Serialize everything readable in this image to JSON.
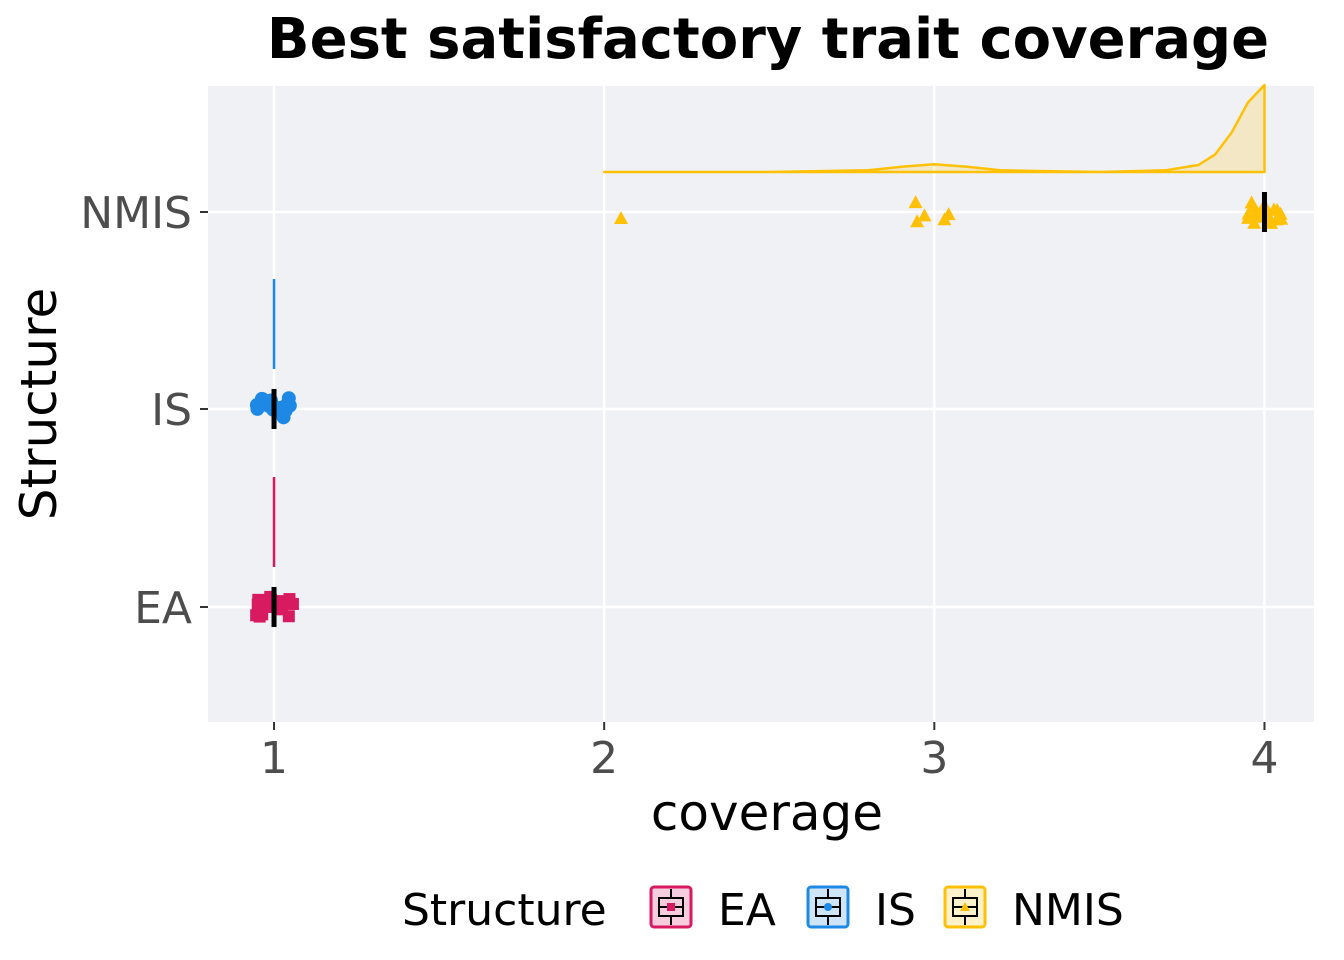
{
  "chart_data": {
    "type": "raincloud",
    "title": "Best satisfactory trait coverage",
    "xlabel": "coverage",
    "ylabel": "Structure",
    "xlim": [
      0.8,
      4.15
    ],
    "x_ticks": [
      1,
      2,
      3,
      4
    ],
    "x_tick_labels": [
      "1",
      "2",
      "3",
      "4"
    ],
    "categories": [
      "EA",
      "IS",
      "NMIS"
    ],
    "grid": true,
    "legend_position": "bottom",
    "legend_title": "Structure",
    "series": [
      {
        "name": "EA",
        "color": "#d81b60",
        "marker": "square",
        "median": 1,
        "box": [
          1,
          1,
          1,
          1,
          1
        ],
        "points": [
          1,
          1,
          1,
          1,
          1,
          1,
          1,
          1,
          1,
          1,
          1,
          1,
          1,
          1,
          1,
          1,
          1,
          1,
          1,
          1
        ],
        "density": {
          "x": [
            1,
            1
          ],
          "y": [
            1,
            1
          ]
        }
      },
      {
        "name": "IS",
        "color": "#1e88e5",
        "marker": "circle",
        "median": 1,
        "box": [
          1,
          1,
          1,
          1,
          1
        ],
        "points": [
          1,
          1,
          1,
          1,
          1,
          1,
          1,
          1,
          1,
          1,
          1,
          1,
          1,
          1,
          1,
          1,
          1,
          1,
          1,
          1
        ],
        "density": {
          "x": [
            1,
            1
          ],
          "y": [
            1,
            1
          ]
        }
      },
      {
        "name": "NMIS",
        "color": "#ffc107",
        "marker": "triangle",
        "median": 4,
        "box": [
          4,
          4,
          4,
          4,
          4
        ],
        "points": [
          2,
          3,
          3,
          3,
          3,
          3,
          4,
          4,
          4,
          4,
          4,
          4,
          4,
          4,
          4,
          4,
          4,
          4,
          4,
          4,
          4,
          4,
          4,
          4,
          4,
          4
        ],
        "density": {
          "x": [
            2.0,
            2.5,
            2.8,
            2.9,
            3.0,
            3.1,
            3.2,
            3.5,
            3.7,
            3.8,
            3.85,
            3.9,
            3.95,
            4.0
          ],
          "y": [
            0.0,
            0.0,
            0.02,
            0.06,
            0.09,
            0.06,
            0.02,
            0.0,
            0.02,
            0.08,
            0.2,
            0.45,
            0.8,
            1.0
          ]
        }
      }
    ]
  }
}
